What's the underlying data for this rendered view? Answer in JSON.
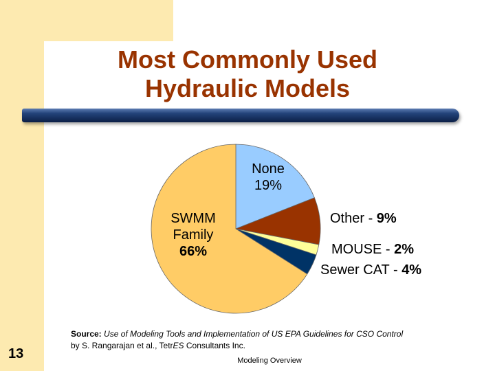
{
  "slide": {
    "title_line1": "Most Commonly Used",
    "title_line2": "Hydraulic Models",
    "slide_number": "13",
    "footer": "Modeling Overview",
    "source_label": "Source:",
    "source_italic": "Use of Modeling Tools and Implementation of US EPA Guidelines for CSO Control",
    "source_byline": "by  S. Rangarajan et al., Tetr",
    "source_byline_italic": "ES",
    "source_byline_end": " Consultants Inc."
  },
  "chart_data": {
    "type": "pie",
    "title": "",
    "slices": [
      {
        "label_line1": "None",
        "label_line2": "19%",
        "value": 19,
        "color": "#99ccff"
      },
      {
        "label_line1": "Other - ",
        "label_line2": "9%",
        "value": 9,
        "color": "#993300"
      },
      {
        "label_line1": "MOUSE - ",
        "label_line2": "2%",
        "value": 2,
        "color": "#ffff99"
      },
      {
        "label_line1": "Sewer CAT - ",
        "label_line2": "4%",
        "value": 4,
        "color": "#003366"
      },
      {
        "label_line1": "SWMM",
        "label_line1b": "Family",
        "label_line2": "66%",
        "value": 66,
        "color": "#ffcc66"
      }
    ],
    "legend": "none"
  },
  "colors": {
    "accent_bar": "#fdeab0",
    "title": "#993300",
    "rule": "#1f3b6e"
  }
}
